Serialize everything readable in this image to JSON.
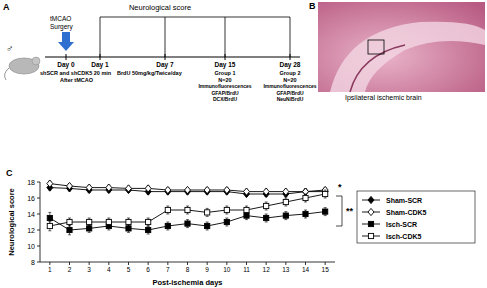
{
  "chart_data": {
    "type": "line",
    "x_label": "Post-ischemia days",
    "y_label": "Neurological score",
    "x": [
      1,
      2,
      3,
      4,
      5,
      6,
      7,
      8,
      9,
      10,
      11,
      12,
      13,
      14,
      15
    ],
    "xlim": [
      0.5,
      15.5
    ],
    "xticks": [
      1,
      2,
      3,
      4,
      5,
      6,
      7,
      8,
      9,
      10,
      11,
      12,
      13,
      14,
      15
    ],
    "ylim": [
      8,
      18
    ],
    "yticks": [
      8,
      10,
      12,
      14,
      16,
      18
    ],
    "grid": false,
    "legend": "right",
    "series": [
      {
        "name": "Sham-SCR",
        "color": "#000000",
        "marker": "diamond",
        "values": [
          17.3,
          17.2,
          17.0,
          17.0,
          17.0,
          16.8,
          16.8,
          16.8,
          16.8,
          16.8,
          16.5,
          16.5,
          16.5,
          16.8,
          16.8
        ],
        "errors": [
          0.3,
          0.3,
          0.3,
          0.3,
          0.3,
          0.3,
          0.3,
          0.3,
          0.3,
          0.3,
          0.3,
          0.3,
          0.3,
          0.3,
          0.3
        ]
      },
      {
        "name": "Sham-CDK5",
        "color": "#000000",
        "marker": "open-diamond",
        "values": [
          17.8,
          17.5,
          17.3,
          17.3,
          17.2,
          17.2,
          17.0,
          17.0,
          17.0,
          17.0,
          16.8,
          16.8,
          16.8,
          16.8,
          17.0
        ],
        "errors": [
          0.3,
          0.3,
          0.3,
          0.3,
          0.3,
          0.3,
          0.3,
          0.3,
          0.3,
          0.3,
          0.3,
          0.3,
          0.3,
          0.3,
          0.3
        ]
      },
      {
        "name": "Isch-SCR",
        "color": "#000000",
        "marker": "square",
        "values": [
          13.5,
          12.0,
          12.2,
          12.5,
          12.2,
          12.0,
          12.5,
          12.8,
          12.5,
          13.0,
          13.8,
          13.5,
          13.8,
          14.0,
          14.3
        ],
        "errors": [
          0.7,
          0.6,
          0.5,
          0.5,
          0.5,
          0.5,
          0.5,
          0.5,
          0.5,
          0.5,
          0.5,
          0.5,
          0.5,
          0.5,
          0.5
        ]
      },
      {
        "name": "Isch-CDK5",
        "color": "#000000",
        "marker": "open-square",
        "values": [
          12.5,
          13.0,
          13.0,
          13.0,
          13.0,
          13.0,
          14.5,
          14.5,
          14.2,
          14.5,
          14.5,
          15.0,
          15.5,
          16.0,
          16.5
        ],
        "errors": [
          0.6,
          0.5,
          0.5,
          0.5,
          0.5,
          0.5,
          0.5,
          0.5,
          0.5,
          0.5,
          0.5,
          0.5,
          0.5,
          0.5,
          0.5
        ]
      }
    ],
    "annotations": [
      "*",
      "**"
    ]
  },
  "panel_a": {
    "panel_label": "A",
    "sex": "♂",
    "header": "Neurological score",
    "surgery": [
      "tMCAO",
      "Surgery"
    ],
    "days": [
      "Day 0",
      "Day 1",
      "Day 7",
      "Day 15",
      "Day 28"
    ],
    "injection": [
      "shSCR and shCDK5 20 min",
      "After tMCAO"
    ],
    "treatment": "BrdU 50mg/kg/Twice/day",
    "groups": [
      {
        "name": "Group 1",
        "n": "N=20",
        "stain": [
          "Immunofluorescences",
          "GFAP/BrdU",
          "DCX/BrdU"
        ]
      },
      {
        "name": "Group 2",
        "n": "N=20",
        "stain": [
          "Immunofluorescences",
          "GFAP/BrdU",
          "NeuN/BrdU"
        ]
      }
    ]
  },
  "panel_b": {
    "panel_label": "B",
    "caption": "Ipsilateral ischemic brain"
  },
  "panel_c": {
    "panel_label": "C"
  }
}
